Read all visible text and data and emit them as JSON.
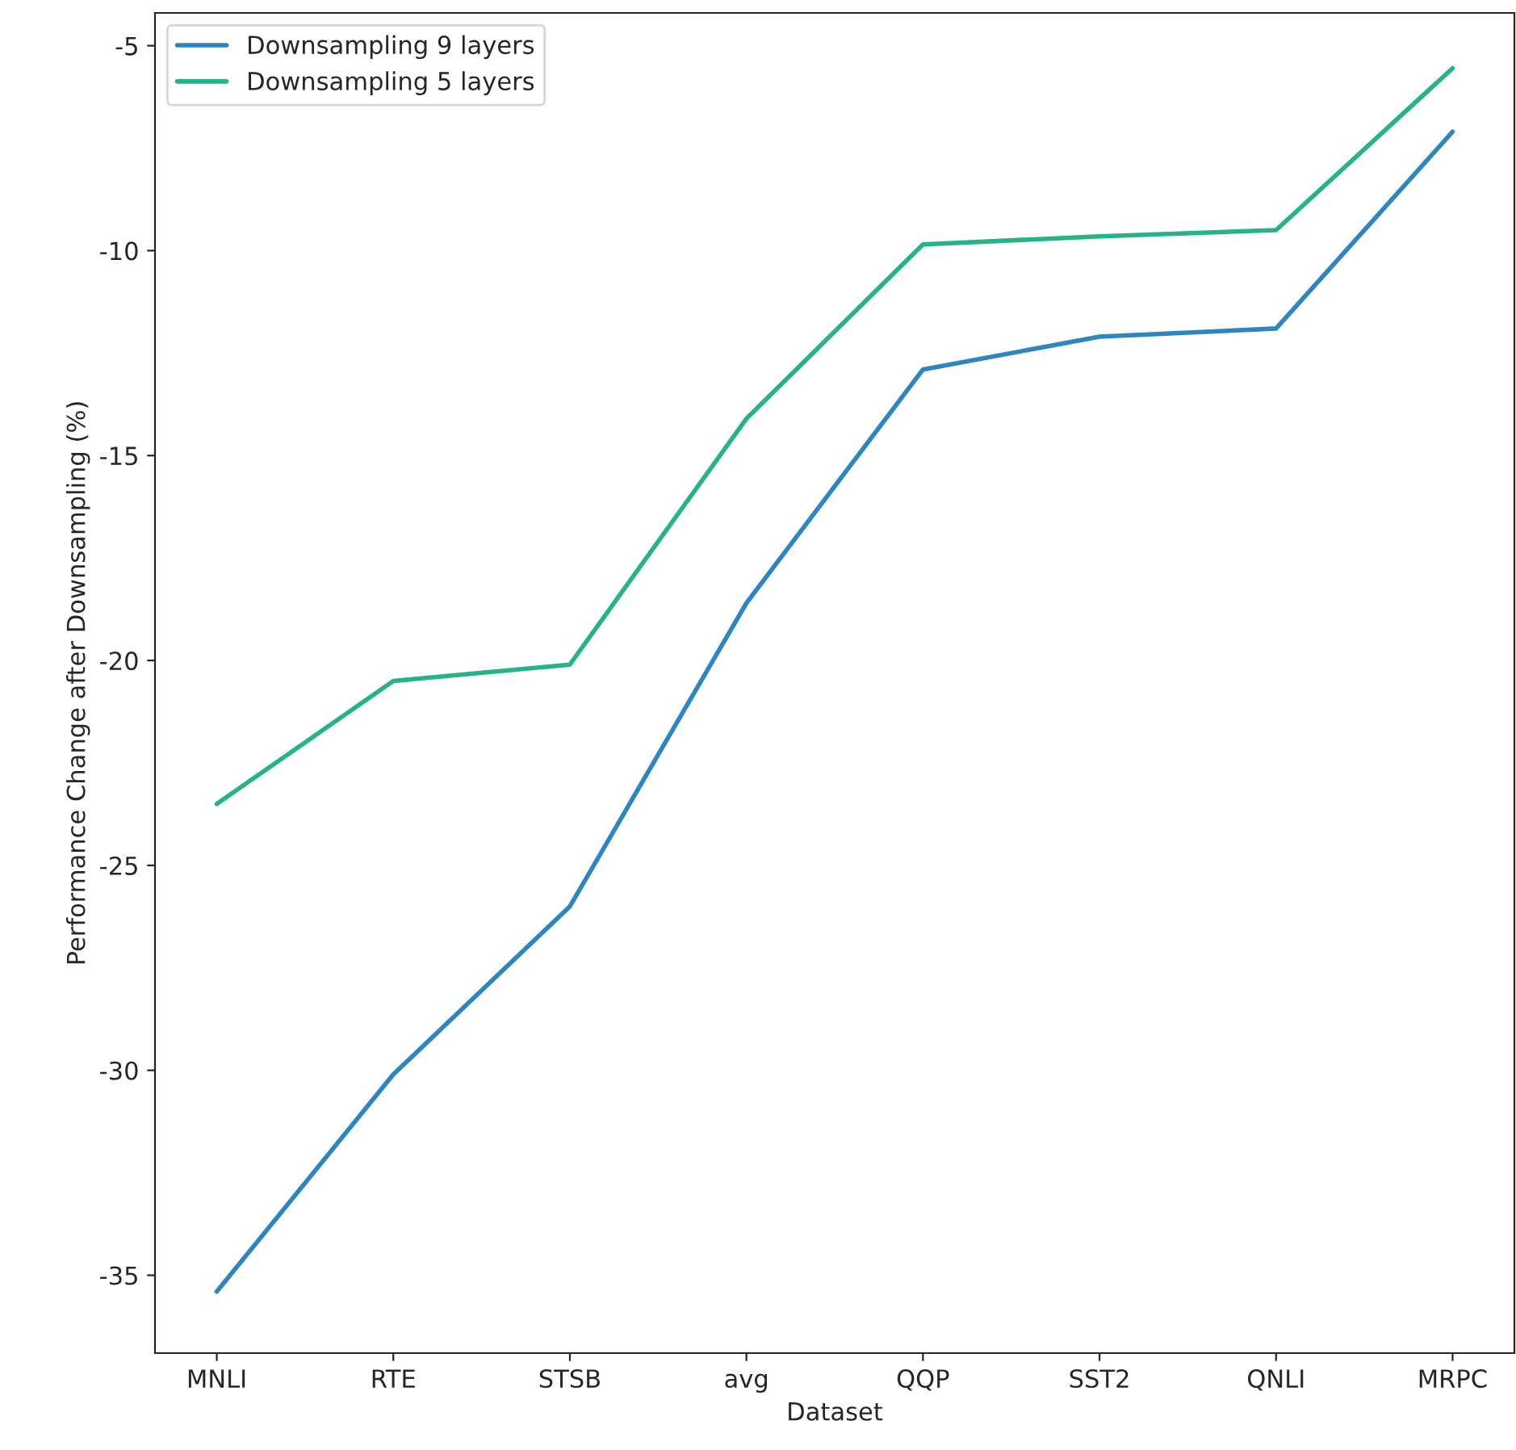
{
  "chart_data": {
    "type": "line",
    "xlabel": "Dataset",
    "ylabel": "Performance Change after Downsampling (%)",
    "categories": [
      "MNLI",
      "RTE",
      "STSB",
      "avg",
      "QQP",
      "SST2",
      "QNLI",
      "MRPC"
    ],
    "series": [
      {
        "name": "Downsampling 9 layers",
        "color": "#2e86c1",
        "values": [
          -35.4,
          -30.1,
          -26.0,
          -18.6,
          -12.9,
          -12.1,
          -11.9,
          -7.1
        ]
      },
      {
        "name": "Downsampling 5 layers",
        "color": "#27b38a",
        "values": [
          -23.5,
          -20.5,
          -20.1,
          -14.1,
          -9.85,
          -9.65,
          -9.5,
          -5.55
        ]
      }
    ],
    "ylim": [
      -36.9,
      -4.2
    ],
    "yticks": [
      -35,
      -30,
      -25,
      -20,
      -15,
      -10,
      -5
    ],
    "grid": false,
    "legend": "top left",
    "marker": "none",
    "line_style": "solid"
  }
}
